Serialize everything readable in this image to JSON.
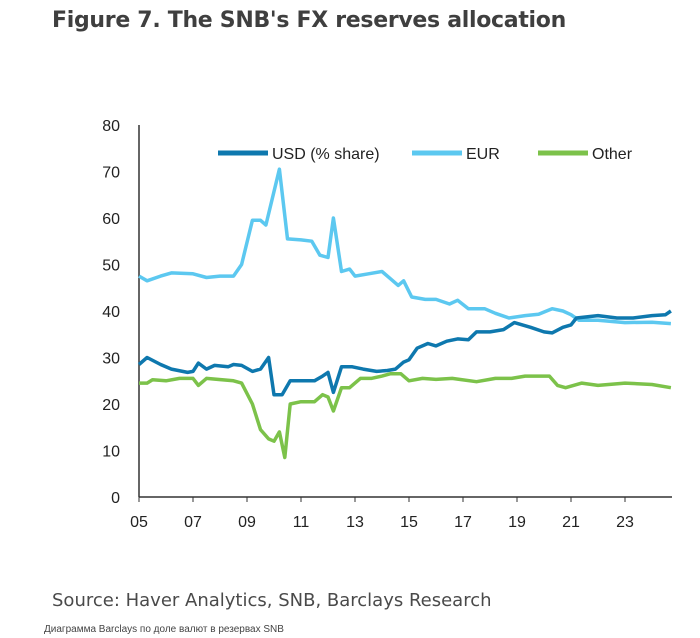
{
  "title": "Figure 7. The SNB's FX reserves allocation",
  "source": "Source: Haver Analytics, SNB, Barclays Research",
  "caption": "Диаграмма Barclays по доле валют в резервах SNB",
  "chart_data": {
    "type": "line",
    "title": "Figure 7. The SNB's FX reserves allocation",
    "xlabel": "",
    "ylabel": "",
    "xlim": [
      2005,
      2025
    ],
    "ylim": [
      0,
      80
    ],
    "x_ticks": [
      "05",
      "07",
      "09",
      "11",
      "13",
      "15",
      "17",
      "19",
      "21",
      "23"
    ],
    "y_ticks": [
      0,
      10,
      20,
      30,
      40,
      50,
      60,
      70,
      80
    ],
    "grid": false,
    "legend_position": "top",
    "series": [
      {
        "name": "USD (% share)",
        "color": "#0e78ae",
        "points": [
          [
            2005,
            28.5
          ],
          [
            2005.3,
            30
          ],
          [
            2005.8,
            28.5
          ],
          [
            2006.2,
            27.5
          ],
          [
            2006.8,
            26.8
          ],
          [
            2007,
            27
          ],
          [
            2007.2,
            28.8
          ],
          [
            2007.5,
            27.5
          ],
          [
            2007.8,
            28.3
          ],
          [
            2008.3,
            28
          ],
          [
            2008.5,
            28.5
          ],
          [
            2008.8,
            28.3
          ],
          [
            2009.2,
            27
          ],
          [
            2009.5,
            27.5
          ],
          [
            2009.8,
            30
          ],
          [
            2010,
            22
          ],
          [
            2010.3,
            22
          ],
          [
            2010.6,
            25
          ],
          [
            2011,
            25
          ],
          [
            2011.5,
            25
          ],
          [
            2011.8,
            26
          ],
          [
            2012,
            26.8
          ],
          [
            2012.2,
            22.5
          ],
          [
            2012.5,
            28
          ],
          [
            2012.9,
            28
          ],
          [
            2013.3,
            27.5
          ],
          [
            2013.8,
            27
          ],
          [
            2014.2,
            27.2
          ],
          [
            2014.5,
            27.5
          ],
          [
            2014.8,
            29
          ],
          [
            2015,
            29.5
          ],
          [
            2015.3,
            32
          ],
          [
            2015.7,
            33
          ],
          [
            2016,
            32.5
          ],
          [
            2016.4,
            33.5
          ],
          [
            2016.8,
            34
          ],
          [
            2017.2,
            33.8
          ],
          [
            2017.5,
            35.5
          ],
          [
            2018,
            35.5
          ],
          [
            2018.5,
            36
          ],
          [
            2018.9,
            37.5
          ],
          [
            2019.5,
            36.5
          ],
          [
            2020,
            35.5
          ],
          [
            2020.3,
            35.3
          ],
          [
            2020.7,
            36.5
          ],
          [
            2021,
            37
          ],
          [
            2021.2,
            38.5
          ],
          [
            2022,
            39
          ],
          [
            2022.7,
            38.5
          ],
          [
            2023.3,
            38.5
          ],
          [
            2024,
            39
          ],
          [
            2024.5,
            39.2
          ],
          [
            2024.7,
            40
          ]
        ]
      },
      {
        "name": "EUR",
        "color": "#5cc8f0",
        "points": [
          [
            2005,
            47.5
          ],
          [
            2005.3,
            46.5
          ],
          [
            2005.8,
            47.5
          ],
          [
            2006.2,
            48.2
          ],
          [
            2007,
            48
          ],
          [
            2007.5,
            47.2
          ],
          [
            2008,
            47.5
          ],
          [
            2008.5,
            47.5
          ],
          [
            2008.8,
            50
          ],
          [
            2009.2,
            59.5
          ],
          [
            2009.5,
            59.5
          ],
          [
            2009.7,
            58.5
          ],
          [
            2010.2,
            70.5
          ],
          [
            2010.5,
            55.5
          ],
          [
            2011,
            55.3
          ],
          [
            2011.4,
            55
          ],
          [
            2011.7,
            52
          ],
          [
            2012,
            51.5
          ],
          [
            2012.2,
            60
          ],
          [
            2012.5,
            48.5
          ],
          [
            2012.8,
            49
          ],
          [
            2013,
            47.5
          ],
          [
            2013.5,
            48
          ],
          [
            2014,
            48.5
          ],
          [
            2014.3,
            47
          ],
          [
            2014.6,
            45.5
          ],
          [
            2014.8,
            46.5
          ],
          [
            2015.1,
            43
          ],
          [
            2015.6,
            42.5
          ],
          [
            2016,
            42.5
          ],
          [
            2016.5,
            41.5
          ],
          [
            2016.8,
            42.3
          ],
          [
            2017.2,
            40.5
          ],
          [
            2017.8,
            40.5
          ],
          [
            2018.2,
            39.5
          ],
          [
            2018.7,
            38.5
          ],
          [
            2019.3,
            39
          ],
          [
            2019.8,
            39.3
          ],
          [
            2020.3,
            40.5
          ],
          [
            2020.7,
            40
          ],
          [
            2021,
            39.2
          ],
          [
            2021.3,
            38
          ],
          [
            2022,
            38
          ],
          [
            2023,
            37.5
          ],
          [
            2024,
            37.6
          ],
          [
            2024.7,
            37.3
          ]
        ]
      },
      {
        "name": "Other",
        "color": "#7cc24a",
        "points": [
          [
            2005,
            24.5
          ],
          [
            2005.3,
            24.5
          ],
          [
            2005.5,
            25.2
          ],
          [
            2006,
            25
          ],
          [
            2006.5,
            25.5
          ],
          [
            2007,
            25.5
          ],
          [
            2007.2,
            24
          ],
          [
            2007.5,
            25.5
          ],
          [
            2008.5,
            25
          ],
          [
            2008.8,
            24.5
          ],
          [
            2009.2,
            20
          ],
          [
            2009.5,
            14.5
          ],
          [
            2009.8,
            12.5
          ],
          [
            2010,
            12
          ],
          [
            2010.2,
            14
          ],
          [
            2010.4,
            8.5
          ],
          [
            2010.6,
            20
          ],
          [
            2011,
            20.5
          ],
          [
            2011.5,
            20.5
          ],
          [
            2011.8,
            22
          ],
          [
            2012,
            21.5
          ],
          [
            2012.2,
            18.5
          ],
          [
            2012.5,
            23.5
          ],
          [
            2012.8,
            23.5
          ],
          [
            2013.2,
            25.5
          ],
          [
            2013.6,
            25.5
          ],
          [
            2014,
            26
          ],
          [
            2014.3,
            26.5
          ],
          [
            2014.7,
            26.5
          ],
          [
            2015,
            25
          ],
          [
            2015.5,
            25.5
          ],
          [
            2016,
            25.3
          ],
          [
            2016.6,
            25.5
          ],
          [
            2017.5,
            24.8
          ],
          [
            2018.2,
            25.5
          ],
          [
            2018.8,
            25.5
          ],
          [
            2019.3,
            26
          ],
          [
            2020.2,
            26
          ],
          [
            2020.5,
            24
          ],
          [
            2020.8,
            23.5
          ],
          [
            2021.4,
            24.5
          ],
          [
            2022,
            24
          ],
          [
            2023,
            24.5
          ],
          [
            2024,
            24.2
          ],
          [
            2024.7,
            23.5
          ]
        ]
      }
    ]
  }
}
